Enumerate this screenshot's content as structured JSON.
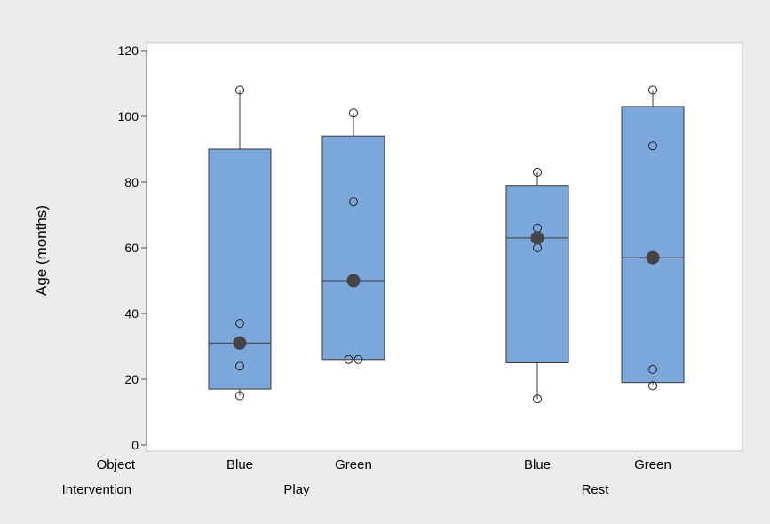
{
  "chart_data": {
    "type": "boxplot",
    "ylabel": "Age (months)",
    "ylim": [
      0,
      120
    ],
    "y_ticks": [
      0,
      20,
      40,
      60,
      80,
      100,
      120
    ],
    "y_tick_labels": [
      "0",
      "20",
      "40",
      "60",
      "80",
      "100",
      "120"
    ],
    "row_labels": {
      "object": "Object",
      "intervention": "Intervention"
    },
    "groups": [
      {
        "label": "Play",
        "object_labels": [
          "Blue",
          "Green"
        ]
      },
      {
        "label": "Rest",
        "object_labels": [
          "Blue",
          "Green"
        ]
      }
    ],
    "boxes": [
      {
        "group": "Play",
        "object": "Blue",
        "q1": 17,
        "median": 31,
        "q3": 90,
        "whisker_low": 15,
        "whisker_high": 108,
        "mean": 31,
        "points": [
          108,
          37,
          24,
          15
        ]
      },
      {
        "group": "Play",
        "object": "Green",
        "q1": 26,
        "median": 50,
        "q3": 94,
        "whisker_low": 26,
        "whisker_high": 101,
        "mean": 50,
        "points": [
          101,
          74,
          26,
          26
        ]
      },
      {
        "group": "Rest",
        "object": "Blue",
        "q1": 25,
        "median": 63,
        "q3": 79,
        "whisker_low": 14,
        "whisker_high": 83,
        "mean": 63,
        "points": [
          83,
          66,
          60,
          14
        ]
      },
      {
        "group": "Rest",
        "object": "Green",
        "q1": 19,
        "median": 57,
        "q3": 103,
        "whisker_low": 18,
        "whisker_high": 108,
        "mean": 57,
        "points": [
          108,
          91,
          23,
          18
        ]
      }
    ],
    "grid": false,
    "colors": {
      "box_fill": "#7ba7da",
      "outline": "#3a3a3a",
      "mean_marker": "#444444",
      "plot_bg": "#ffffff",
      "figure_bg": "#ececec"
    }
  }
}
